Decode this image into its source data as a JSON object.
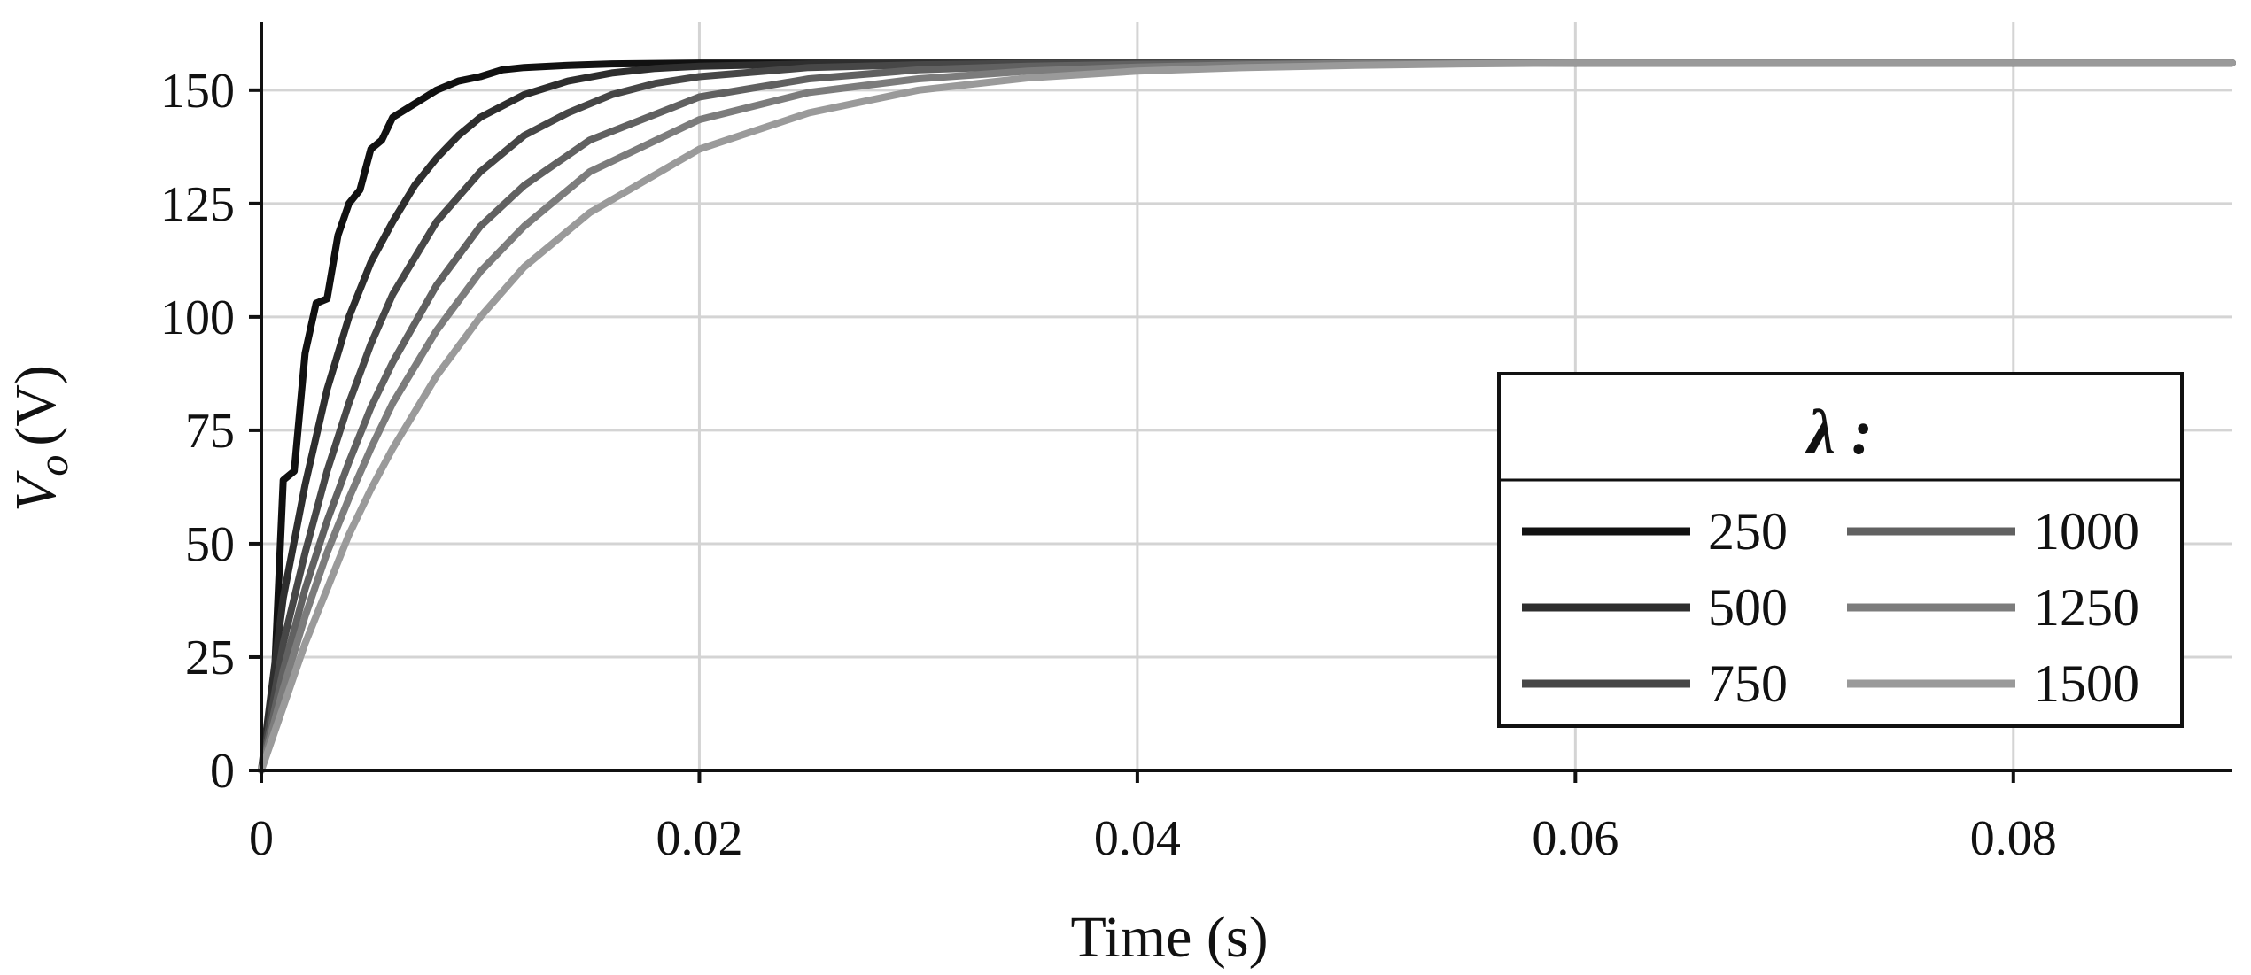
{
  "chart_data": {
    "type": "line",
    "title": "",
    "xlabel": "Time (s)",
    "ylabel_symbol": "V",
    "ylabel_subscript": "o",
    "ylabel_unit": "(V)",
    "xlim": [
      0,
      0.09
    ],
    "ylim": [
      0,
      165
    ],
    "x_ticks": [
      0,
      0.02,
      0.04,
      0.06,
      0.08
    ],
    "x_tick_labels": [
      "0",
      "0.02",
      "0.04",
      "0.06",
      "0.08"
    ],
    "y_ticks": [
      0,
      25,
      50,
      75,
      100,
      125,
      150
    ],
    "y_tick_labels": [
      "0",
      "25",
      "50",
      "75",
      "100",
      "125",
      "150"
    ],
    "grid": true,
    "legend": {
      "title": "λ :",
      "placement": "lower-right",
      "columns": 2
    },
    "steady_state": 156,
    "series": [
      {
        "name": "250",
        "color": "#111111",
        "x": [
          0,
          0.0005,
          0.001,
          0.0015,
          0.002,
          0.0025,
          0.003,
          0.0035,
          0.004,
          0.0045,
          0.005,
          0.0055,
          0.006,
          0.007,
          0.008,
          0.009,
          0.01,
          0.011,
          0.012,
          0.014,
          0.016,
          0.02,
          0.03,
          0.05,
          0.07,
          0.09
        ],
        "y": [
          0,
          10,
          64,
          66,
          92,
          103,
          104,
          118,
          125,
          128,
          137,
          139,
          144,
          147,
          150,
          152,
          153,
          154.5,
          155,
          155.5,
          155.8,
          156,
          156,
          156,
          156,
          156
        ]
      },
      {
        "name": "500",
        "color": "#2e2e2e",
        "x": [
          0,
          0.001,
          0.002,
          0.003,
          0.004,
          0.005,
          0.006,
          0.007,
          0.008,
          0.009,
          0.01,
          0.012,
          0.014,
          0.016,
          0.018,
          0.02,
          0.025,
          0.03,
          0.04,
          0.06,
          0.09
        ],
        "y": [
          0,
          38,
          63,
          84,
          100,
          112,
          121,
          129,
          135,
          140,
          144,
          149,
          152,
          153.8,
          154.8,
          155.3,
          155.8,
          156,
          156,
          156,
          156
        ]
      },
      {
        "name": "750",
        "color": "#474747",
        "x": [
          0,
          0.001,
          0.002,
          0.003,
          0.004,
          0.005,
          0.006,
          0.008,
          0.01,
          0.012,
          0.014,
          0.016,
          0.018,
          0.02,
          0.025,
          0.03,
          0.035,
          0.04,
          0.05,
          0.07,
          0.09
        ],
        "y": [
          0,
          28,
          48,
          66,
          81,
          94,
          105,
          121,
          132,
          140,
          145,
          149,
          151.5,
          153,
          155,
          155.6,
          155.9,
          156,
          156,
          156,
          156
        ]
      },
      {
        "name": "1000",
        "color": "#616161",
        "x": [
          0,
          0.001,
          0.002,
          0.003,
          0.004,
          0.005,
          0.006,
          0.008,
          0.01,
          0.012,
          0.015,
          0.02,
          0.025,
          0.03,
          0.035,
          0.04,
          0.05,
          0.06,
          0.07,
          0.09
        ],
        "y": [
          0,
          22,
          40,
          55,
          68,
          80,
          90,
          107,
          120,
          129,
          139,
          148.5,
          152.5,
          154.5,
          155.3,
          155.7,
          156,
          156,
          156,
          156
        ]
      },
      {
        "name": "1250",
        "color": "#7c7c7c",
        "x": [
          0,
          0.001,
          0.002,
          0.003,
          0.004,
          0.005,
          0.006,
          0.008,
          0.01,
          0.012,
          0.015,
          0.02,
          0.025,
          0.03,
          0.035,
          0.04,
          0.045,
          0.05,
          0.06,
          0.07,
          0.09
        ],
        "y": [
          0,
          18,
          34,
          48,
          60,
          71,
          81,
          97,
          110,
          120,
          132,
          143.5,
          149.5,
          152.5,
          154.2,
          155.1,
          155.6,
          155.9,
          156,
          156,
          156
        ]
      },
      {
        "name": "1500",
        "color": "#9a9a9a",
        "x": [
          0,
          0.001,
          0.002,
          0.003,
          0.004,
          0.005,
          0.006,
          0.008,
          0.01,
          0.012,
          0.015,
          0.02,
          0.025,
          0.03,
          0.035,
          0.04,
          0.045,
          0.05,
          0.055,
          0.06,
          0.07,
          0.09
        ],
        "y": [
          0,
          14,
          28,
          40,
          52,
          62,
          71,
          87,
          100,
          111,
          123,
          137,
          145,
          150,
          152.7,
          154.2,
          155,
          155.5,
          155.8,
          156,
          156,
          156
        ]
      }
    ]
  }
}
